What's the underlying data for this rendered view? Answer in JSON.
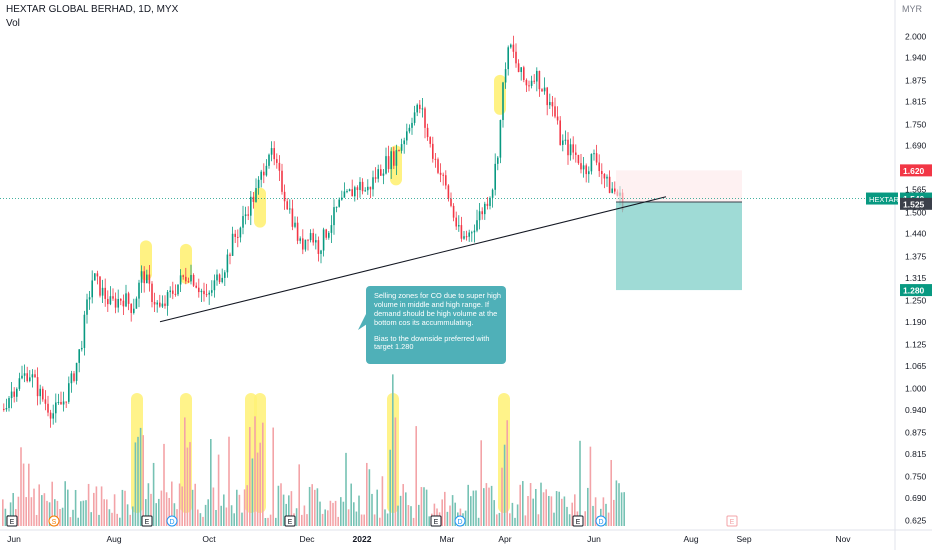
{
  "header": {
    "title": "HEXTAR GLOBAL BERHAD, 1D, MYX",
    "volume_label": "Vol"
  },
  "axis_unit": "MYR",
  "annotation": {
    "line1": "Selling zones for CO due to super high volume in middle and high range. If demand should be high volume at the bottom cos its accummulating.",
    "line2": "Bias to the downside preferred with target 1.280"
  },
  "chart_data": {
    "type": "candlestick",
    "title": "HEXTAR GLOBAL BERHAD, 1D, MYX",
    "price_ticks": [
      2.0,
      1.94,
      1.875,
      1.815,
      1.75,
      1.69,
      1.625,
      1.565,
      1.5,
      1.44,
      1.375,
      1.315,
      1.25,
      1.19,
      1.125,
      1.065,
      1.0,
      0.94,
      0.875,
      0.815,
      0.75,
      0.69,
      0.625
    ],
    "price_range": [
      0.61,
      2.03
    ],
    "x_ticks": [
      "Jun",
      "Aug",
      "Oct",
      "Dec",
      "2022",
      "Mar",
      "Apr",
      "Jun",
      "Aug",
      "Sep",
      "Nov"
    ],
    "price_path": [
      [
        0,
        0.93
      ],
      [
        8,
        0.98
      ],
      [
        18,
        1.02
      ],
      [
        28,
        1.05
      ],
      [
        40,
        0.98
      ],
      [
        52,
        0.93
      ],
      [
        62,
        0.96
      ],
      [
        72,
        1.03
      ],
      [
        80,
        1.12
      ],
      [
        86,
        1.23
      ],
      [
        92,
        1.32
      ],
      [
        100,
        1.28
      ],
      [
        110,
        1.24
      ],
      [
        122,
        1.26
      ],
      [
        132,
        1.23
      ],
      [
        142,
        1.33
      ],
      [
        150,
        1.27
      ],
      [
        160,
        1.22
      ],
      [
        168,
        1.26
      ],
      [
        178,
        1.3
      ],
      [
        188,
        1.33
      ],
      [
        196,
        1.3
      ],
      [
        206,
        1.25
      ],
      [
        214,
        1.3
      ],
      [
        224,
        1.35
      ],
      [
        232,
        1.42
      ],
      [
        240,
        1.46
      ],
      [
        248,
        1.52
      ],
      [
        256,
        1.56
      ],
      [
        262,
        1.62
      ],
      [
        268,
        1.68
      ],
      [
        276,
        1.62
      ],
      [
        284,
        1.55
      ],
      [
        292,
        1.48
      ],
      [
        300,
        1.4
      ],
      [
        308,
        1.45
      ],
      [
        318,
        1.4
      ],
      [
        328,
        1.46
      ],
      [
        338,
        1.52
      ],
      [
        348,
        1.55
      ],
      [
        358,
        1.58
      ],
      [
        366,
        1.56
      ],
      [
        374,
        1.6
      ],
      [
        384,
        1.64
      ],
      [
        394,
        1.66
      ],
      [
        404,
        1.72
      ],
      [
        412,
        1.78
      ],
      [
        420,
        1.8
      ],
      [
        428,
        1.7
      ],
      [
        436,
        1.64
      ],
      [
        444,
        1.58
      ],
      [
        452,
        1.5
      ],
      [
        460,
        1.42
      ],
      [
        468,
        1.44
      ],
      [
        476,
        1.48
      ],
      [
        484,
        1.52
      ],
      [
        492,
        1.58
      ],
      [
        498,
        1.7
      ],
      [
        504,
        1.92
      ],
      [
        510,
        1.97
      ],
      [
        518,
        1.9
      ],
      [
        526,
        1.86
      ],
      [
        534,
        1.9
      ],
      [
        544,
        1.84
      ],
      [
        552,
        1.8
      ],
      [
        560,
        1.7
      ],
      [
        568,
        1.68
      ],
      [
        576,
        1.66
      ],
      [
        584,
        1.62
      ],
      [
        592,
        1.66
      ],
      [
        598,
        1.64
      ],
      [
        606,
        1.58
      ],
      [
        614,
        1.56
      ],
      [
        622,
        1.53
      ]
    ],
    "volume_highlights_x": [
      137,
      186,
      251,
      260,
      393,
      504
    ],
    "price_highlights": [
      [
        146,
        1.37
      ],
      [
        186,
        1.36
      ],
      [
        260,
        1.52
      ],
      [
        396,
        1.64
      ],
      [
        500,
        1.84
      ]
    ],
    "trendline": {
      "from": [
        160,
        1.19
      ],
      "to": [
        666,
        1.545
      ]
    },
    "position": {
      "entry": 1.53,
      "stop": 1.62,
      "target": 1.28,
      "x_start": 616,
      "x_end": 742
    },
    "price_labels": [
      {
        "value": 1.62,
        "text": "1.620",
        "color": "#f23645"
      },
      {
        "value": 1.54,
        "text": "1.540",
        "color": "#089981",
        "symbol": "HEXTAR"
      },
      {
        "value": 1.525,
        "text": "1.525",
        "color": "#3b3f4a"
      },
      {
        "value": 1.28,
        "text": "1.280",
        "color": "#089981"
      }
    ],
    "event_markers": [
      {
        "x": 12,
        "label": "E"
      },
      {
        "x": 54,
        "label": "S"
      },
      {
        "x": 147,
        "label": "E"
      },
      {
        "x": 172,
        "label": "D"
      },
      {
        "x": 290,
        "label": "E"
      },
      {
        "x": 436,
        "label": "E"
      },
      {
        "x": 460,
        "label": "D"
      },
      {
        "x": 578,
        "label": "E"
      },
      {
        "x": 601,
        "label": "D"
      },
      {
        "x": 732,
        "label": "E"
      }
    ]
  }
}
